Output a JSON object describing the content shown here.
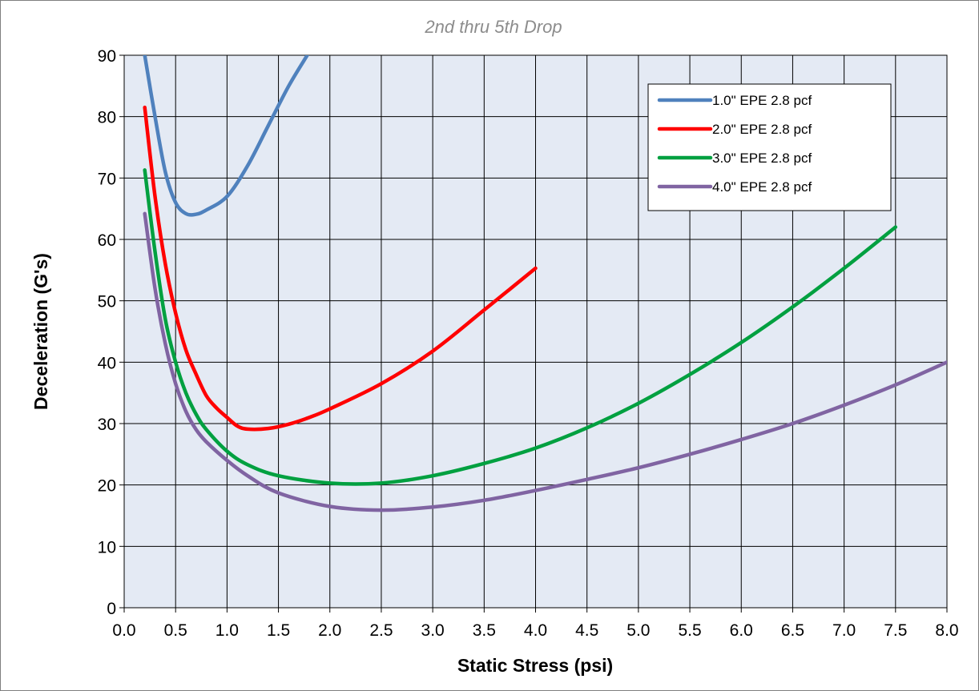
{
  "chart_data": {
    "type": "line",
    "title": "2nd thru 5th Drop",
    "xlabel": "Static Stress (psi)",
    "ylabel": "Deceleration (G's)",
    "xlim": [
      0.0,
      8.0
    ],
    "ylim": [
      0,
      90
    ],
    "x_ticks": [
      0.0,
      0.5,
      1.0,
      1.5,
      2.0,
      2.5,
      3.0,
      3.5,
      4.0,
      4.5,
      5.0,
      5.5,
      6.0,
      6.5,
      7.0,
      7.5,
      8.0
    ],
    "x_tick_labels": [
      "0.0",
      "0.5",
      "1.0",
      "1.5",
      "2.0",
      "2.5",
      "3.0",
      "3.5",
      "4.0",
      "4.5",
      "5.0",
      "5.5",
      "6.0",
      "6.5",
      "7.0",
      "7.5",
      "8.0"
    ],
    "y_ticks": [
      0,
      10,
      20,
      30,
      40,
      50,
      60,
      70,
      80,
      90
    ],
    "y_tick_labels": [
      "0",
      "10",
      "20",
      "30",
      "40",
      "50",
      "60",
      "70",
      "80",
      "90"
    ],
    "grid": true,
    "legend_position": "top-right",
    "plot_background": "#e4eaf4",
    "series": [
      {
        "name": "1.0\" EPE 2.8 pcf",
        "color": "#4f81bd",
        "x": [
          0.2,
          0.3,
          0.4,
          0.5,
          0.6,
          0.7,
          0.8,
          1.0,
          1.2,
          1.4,
          1.6,
          1.78
        ],
        "y": [
          90,
          80,
          71,
          66,
          64.2,
          64.1,
          64.8,
          67,
          72,
          78.5,
          85,
          90
        ]
      },
      {
        "name": "2.0\" EPE 2.8 pcf",
        "color": "#ff0000",
        "x": [
          0.2,
          0.3,
          0.4,
          0.5,
          0.6,
          0.7,
          0.8,
          0.9,
          1.0,
          1.1,
          1.2,
          1.4,
          1.6,
          1.8,
          2.0,
          2.5,
          3.0,
          3.5,
          4.0
        ],
        "y": [
          81.5,
          67,
          56,
          48,
          42,
          38,
          34.5,
          32.5,
          31,
          29.6,
          29.1,
          29.2,
          29.9,
          31,
          32.4,
          36.5,
          41.8,
          48.5,
          55.3
        ]
      },
      {
        "name": "3.0\" EPE 2.8 pcf",
        "color": "#00a040",
        "x": [
          0.2,
          0.3,
          0.4,
          0.5,
          0.6,
          0.7,
          0.8,
          1.0,
          1.2,
          1.5,
          2.0,
          2.5,
          3.0,
          3.5,
          4.0,
          4.5,
          5.0,
          5.5,
          6.0,
          6.5,
          7.0,
          7.5
        ],
        "y": [
          71.3,
          58,
          47,
          40,
          35,
          31.5,
          29,
          25.5,
          23.3,
          21.5,
          20.3,
          20.3,
          21.5,
          23.5,
          26,
          29.3,
          33.3,
          38,
          43.2,
          49,
          55.3,
          62
        ]
      },
      {
        "name": "4.0\" EPE 2.8 pcf",
        "color": "#8064a2",
        "x": [
          0.2,
          0.3,
          0.4,
          0.5,
          0.6,
          0.7,
          0.8,
          1.0,
          1.2,
          1.5,
          2.0,
          2.5,
          3.0,
          3.5,
          4.0,
          4.5,
          5.0,
          5.5,
          6.0,
          6.5,
          7.0,
          7.5,
          8.0
        ],
        "y": [
          64.2,
          52,
          43,
          36.5,
          32,
          29,
          27,
          24,
          21.5,
          18.7,
          16.5,
          15.9,
          16.4,
          17.5,
          19.1,
          20.9,
          22.8,
          25,
          27.4,
          30,
          33,
          36.3,
          40
        ]
      }
    ]
  }
}
